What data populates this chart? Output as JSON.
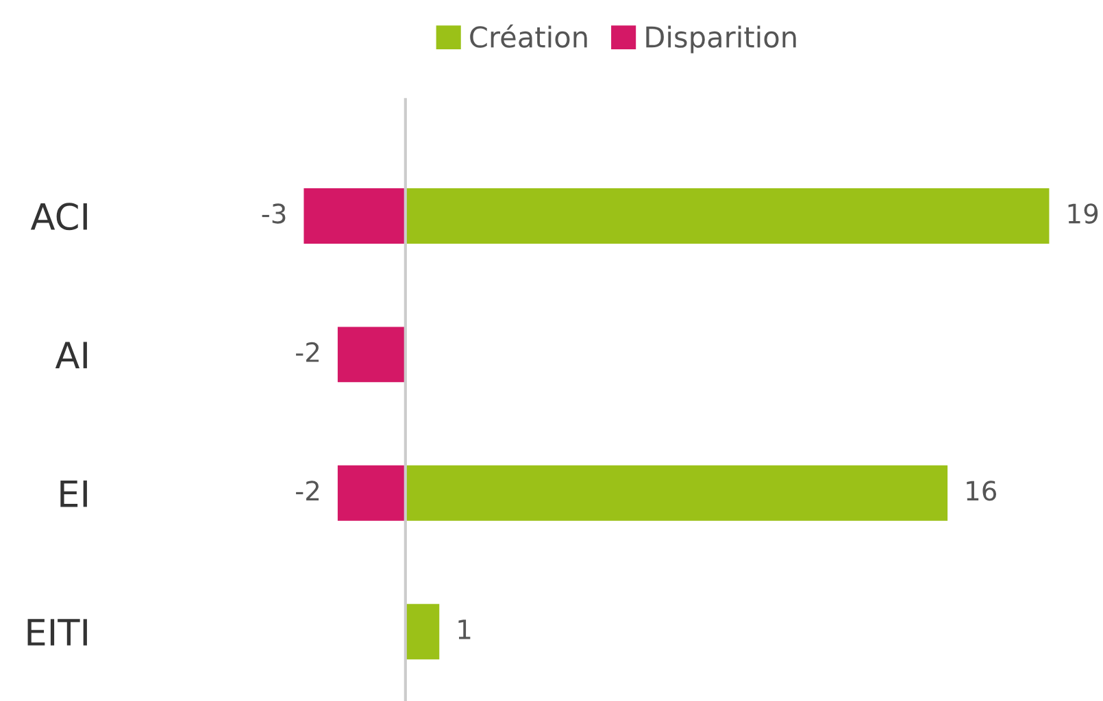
{
  "chart_data": {
    "type": "bar",
    "orientation": "horizontal",
    "stacked": true,
    "categories": [
      "ACI",
      "AI",
      "EI",
      "EITI"
    ],
    "series": [
      {
        "name": "Création",
        "color": "#9bc118",
        "values": [
          19,
          null,
          16,
          1
        ]
      },
      {
        "name": "Disparition",
        "color": "#d41866",
        "values": [
          -3,
          -2,
          -2,
          null
        ]
      }
    ],
    "data_labels": true,
    "legend": "top",
    "grid": false
  }
}
